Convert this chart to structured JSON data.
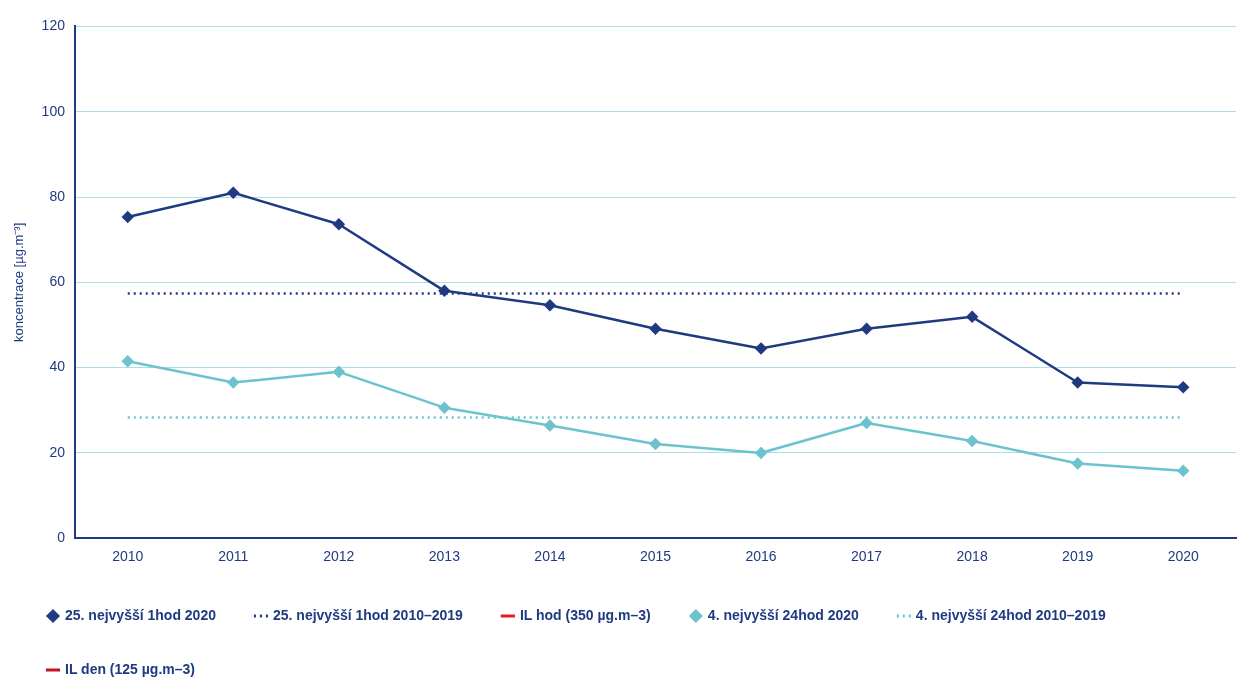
{
  "chart_data": {
    "type": "line",
    "ylabel": "koncentrace [µg.m⁻³]",
    "categories": [
      "2010",
      "2011",
      "2012",
      "2013",
      "2014",
      "2015",
      "2016",
      "2017",
      "2018",
      "2019",
      "2020"
    ],
    "ylim": [
      0,
      120
    ],
    "yticks": [
      0,
      20,
      40,
      60,
      80,
      100,
      120
    ],
    "grid": "y",
    "legend": "bottom",
    "series": [
      {
        "name": "25. nejvyšší 1hod 2020",
        "color": "#1f3a80",
        "marker": "diamond",
        "line_style": "solid",
        "values": [
          75.3,
          81.0,
          73.6,
          58.0,
          54.6,
          49.1,
          44.5,
          49.1,
          51.9,
          36.5,
          35.4
        ]
      },
      {
        "name": "25. nejvyšší 1hod 2010–2019",
        "color": "#1f3a80",
        "marker": "none",
        "line_style": "dotted",
        "values": [
          57.4,
          57.4,
          57.4,
          57.4,
          57.4,
          57.4,
          57.4,
          57.4,
          57.4,
          57.4,
          57.4
        ]
      },
      {
        "name": "IL hod (350 µg.m–3)",
        "color": "#e3201b",
        "marker": "none",
        "line_style": "solid",
        "values": [
          null,
          null,
          null,
          null,
          null,
          null,
          null,
          null,
          null,
          null,
          null
        ]
      },
      {
        "name": "4. nejvyšší 24hod 2020",
        "color": "#6cc3cd",
        "marker": "diamond",
        "line_style": "solid",
        "values": [
          41.5,
          36.5,
          39.0,
          30.6,
          26.4,
          22.1,
          20.0,
          27.0,
          22.8,
          17.5,
          15.8
        ]
      },
      {
        "name": "4. nejvyšší 24hod 2010–2019",
        "color": "#6cc3cd",
        "marker": "none",
        "line_style": "dotted",
        "values": [
          28.3,
          28.3,
          28.3,
          28.3,
          28.3,
          28.3,
          28.3,
          28.3,
          28.3,
          28.3,
          28.3
        ]
      },
      {
        "name": "IL den (125 µg.m–3)",
        "color": "#c0151b",
        "marker": "none",
        "line_style": "solid",
        "values": [
          null,
          null,
          null,
          null,
          null,
          null,
          null,
          null,
          null,
          null,
          null
        ]
      }
    ]
  }
}
